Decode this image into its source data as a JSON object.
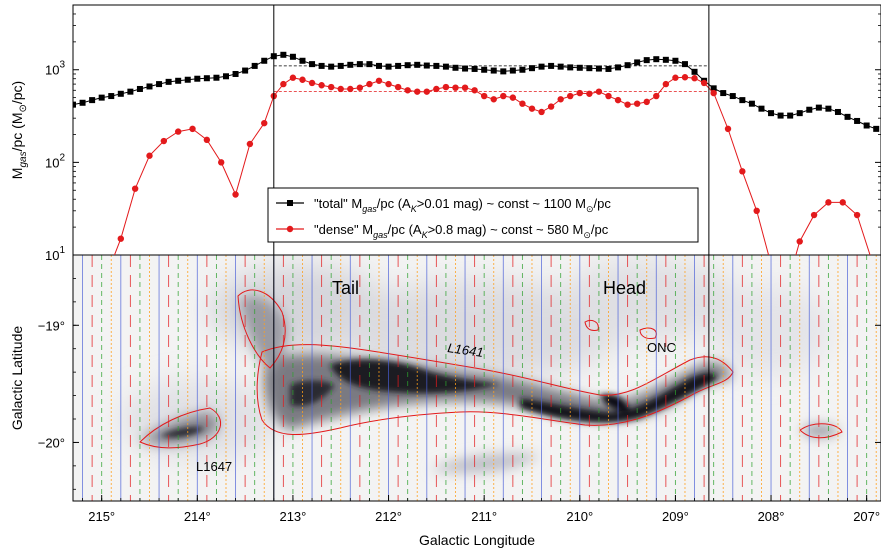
{
  "chart_data": [
    {
      "type": "line",
      "ylabel": "M_gas/pc (M_⊙/pc)",
      "ylabel_parts": [
        "M",
        "gas",
        "/pc (M",
        "⊙",
        "/pc)"
      ],
      "y_scale": "log",
      "ylim": [
        10,
        5000
      ],
      "xlim": [
        215.3,
        206.85
      ],
      "y_ticks": [
        {
          "value": 10,
          "label": "10",
          "sup": "1"
        },
        {
          "value": 100,
          "label": "10",
          "sup": "2"
        },
        {
          "value": 1000,
          "label": "10",
          "sup": "3"
        }
      ],
      "vlines": [
        213.2,
        208.65
      ],
      "series": [
        {
          "name": "\"total\" M_gas/pc (A_K>0.01 mag) ~ const ~ 1100 M_⊙/pc",
          "legend_parts": [
            "\"total\" M",
            "gas",
            "/pc (A",
            "K",
            ">0.01 mag) ~ const ~ 1100 M",
            "⊙",
            "/pc"
          ],
          "color": "#000000",
          "marker": "square",
          "const_level": 1100,
          "const_range": [
            213.2,
            208.65
          ],
          "x": [
            215.3,
            215.2,
            215.1,
            215.0,
            214.9,
            214.8,
            214.7,
            214.6,
            214.5,
            214.4,
            214.3,
            214.2,
            214.1,
            214.0,
            213.9,
            213.8,
            213.7,
            213.6,
            213.5,
            213.4,
            213.3,
            213.2,
            213.1,
            213.0,
            212.9,
            212.8,
            212.7,
            212.6,
            212.5,
            212.4,
            212.3,
            212.2,
            212.1,
            212.0,
            211.9,
            211.8,
            211.7,
            211.6,
            211.5,
            211.4,
            211.3,
            211.2,
            211.1,
            211.0,
            210.9,
            210.8,
            210.7,
            210.6,
            210.5,
            210.4,
            210.3,
            210.2,
            210.1,
            210.0,
            209.9,
            209.8,
            209.7,
            209.6,
            209.5,
            209.4,
            209.3,
            209.2,
            209.1,
            209.0,
            208.9,
            208.8,
            208.7,
            208.6,
            208.5,
            208.4,
            208.3,
            208.2,
            208.1,
            208.0,
            207.9,
            207.8,
            207.7,
            207.6,
            207.5,
            207.4,
            207.3,
            207.2,
            207.1,
            207.0,
            206.9
          ],
          "y": [
            420,
            440,
            470,
            500,
            520,
            550,
            580,
            620,
            660,
            700,
            740,
            760,
            780,
            800,
            810,
            820,
            850,
            900,
            980,
            1100,
            1250,
            1400,
            1450,
            1380,
            1250,
            1150,
            1100,
            1080,
            1100,
            1130,
            1150,
            1150,
            1100,
            1080,
            1100,
            1120,
            1130,
            1110,
            1100,
            1080,
            1050,
            1030,
            1020,
            1000,
            980,
            960,
            980,
            1000,
            1040,
            1080,
            1100,
            1080,
            1060,
            1050,
            1040,
            1030,
            1020,
            1060,
            1120,
            1200,
            1270,
            1300,
            1280,
            1250,
            1150,
            950,
            760,
            630,
            560,
            520,
            470,
            430,
            380,
            340,
            320,
            320,
            340,
            370,
            390,
            380,
            350,
            310,
            280,
            250,
            230
          ]
        },
        {
          "name": "\"dense\" M_gas/pc (A_K>0.8 mag) ~ const ~ 580 M_⊙/pc",
          "legend_parts": [
            "\"dense\" M",
            "gas",
            "/pc (A",
            "K",
            ">0.8 mag) ~ const ~ 580 M",
            "⊙",
            "/pc"
          ],
          "color": "#e31a1c",
          "marker": "circle",
          "const_level": 580,
          "const_range": [
            213.2,
            208.65
          ],
          "x": [
            214.95,
            214.8,
            214.65,
            214.5,
            214.35,
            214.2,
            214.05,
            213.9,
            213.75,
            213.6,
            213.45,
            213.3,
            213.2,
            213.1,
            213.0,
            212.9,
            212.8,
            212.7,
            212.6,
            212.5,
            212.4,
            212.3,
            212.2,
            212.1,
            212.0,
            211.9,
            211.8,
            211.7,
            211.6,
            211.5,
            211.4,
            211.3,
            211.2,
            211.1,
            211.0,
            210.9,
            210.8,
            210.7,
            210.6,
            210.5,
            210.4,
            210.3,
            210.2,
            210.1,
            210.0,
            209.9,
            209.8,
            209.7,
            209.6,
            209.5,
            209.4,
            209.3,
            209.2,
            209.1,
            209.0,
            208.9,
            208.8,
            208.7,
            208.6,
            208.45,
            208.3,
            208.15,
            208.0,
            207.85,
            207.7,
            207.55,
            207.4,
            207.25,
            207.1,
            206.95
          ],
          "y": [
            6,
            15,
            52,
            118,
            170,
            215,
            230,
            175,
            100,
            45,
            158,
            265,
            520,
            700,
            820,
            780,
            720,
            680,
            650,
            620,
            620,
            640,
            700,
            760,
            700,
            650,
            600,
            580,
            580,
            620,
            650,
            640,
            640,
            600,
            520,
            480,
            520,
            500,
            430,
            380,
            350,
            400,
            480,
            520,
            560,
            550,
            580,
            520,
            470,
            420,
            430,
            450,
            520,
            700,
            820,
            830,
            810,
            720,
            560,
            230,
            80,
            30,
            8,
            4,
            14,
            27,
            37,
            37,
            27,
            9
          ]
        }
      ]
    },
    {
      "type": "heatmap",
      "xlabel": "Galactic Longitude",
      "ylabel": "Galactic Latitude",
      "xlim": [
        215.3,
        206.85
      ],
      "ylim": [
        -20.5,
        -18.4
      ],
      "x_ticks": [
        {
          "value": 215,
          "label": "215°"
        },
        {
          "value": 214,
          "label": "214°"
        },
        {
          "value": 213,
          "label": "213°"
        },
        {
          "value": 212,
          "label": "212°"
        },
        {
          "value": 211,
          "label": "211°"
        },
        {
          "value": 210,
          "label": "210°"
        },
        {
          "value": 209,
          "label": "209°"
        },
        {
          "value": 208,
          "label": "208°"
        },
        {
          "value": 207,
          "label": "207°"
        }
      ],
      "y_ticks": [
        {
          "value": -19,
          "label": "−19°"
        },
        {
          "value": -20,
          "label": "−20°"
        }
      ],
      "annotations": [
        {
          "text": "Tail",
          "x": 212.6,
          "y": -18.72,
          "size": "large"
        },
        {
          "text": "Head",
          "x": 209.7,
          "y": -18.72,
          "size": "large"
        },
        {
          "text": "L1641",
          "x": 211.15,
          "y": -18.99,
          "size": "italic"
        },
        {
          "text": "ONC",
          "x": 209.2,
          "y": -18.98,
          "size": "small"
        },
        {
          "text": "L1647",
          "x": 213.95,
          "y": -20.14,
          "size": "small"
        }
      ],
      "vlines": [
        213.2,
        208.65
      ],
      "slice_lines": {
        "blue": "#4a5fd8",
        "red": "#e31a1c",
        "green": "#2ca02c",
        "orange": "#ff9f1a"
      }
    }
  ]
}
